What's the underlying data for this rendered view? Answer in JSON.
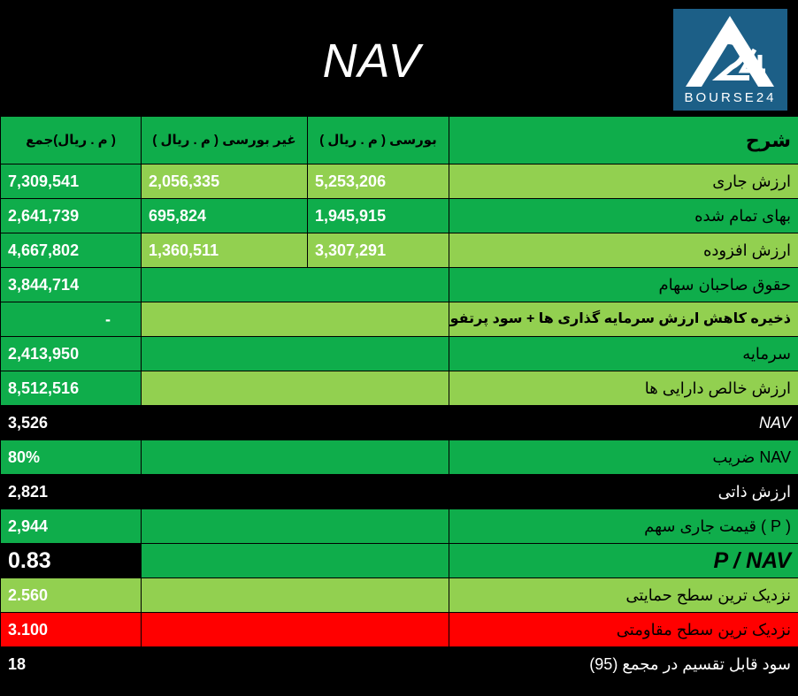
{
  "header": {
    "title": "NAV",
    "logo_text": "BOURSE24"
  },
  "columns": {
    "description": "شرح",
    "bourse": "بورسی ( م . ریال )",
    "non_bourse": "غیر بورسی ( م . ریال )",
    "total": "( م . ریال)جمع"
  },
  "rows": [
    {
      "label": "ارزش جاری",
      "bourse": "5,253,206",
      "non_bourse": "2,056,335",
      "total": "7,309,541"
    },
    {
      "label": "بهای تمام شده",
      "bourse": "1,945,915",
      "non_bourse": "695,824",
      "total": "2,641,739"
    },
    {
      "label": "ارزش افزوده",
      "bourse": "3,307,291",
      "non_bourse": "1,360,511",
      "total": "4,667,802"
    },
    {
      "label": "حقوق صاحبان سهام",
      "total": "3,844,714"
    },
    {
      "label": "ذخیره کاهش ارزش سرمایه گذاری ها + سود پرتفوی",
      "total": "-"
    },
    {
      "label": "سرمایه",
      "total": "2,413,950"
    },
    {
      "label": "ارزش خالص دارایی ها",
      "total": "8,512,516"
    },
    {
      "label": "NAV",
      "total": "3,526"
    },
    {
      "label": "NAV ضریب",
      "total": "80%"
    },
    {
      "label": "ارزش ذاتی",
      "total": "2,821"
    },
    {
      "label": "( P ) قیمت جاری سهم",
      "total": "2,944"
    },
    {
      "label": "P / NAV",
      "total": "0.83"
    },
    {
      "label": "نزدیک ترین سطح حمایتی",
      "total": "2.560"
    },
    {
      "label": "نزدیک ترین سطح مقاومتی",
      "total": "3.100"
    },
    {
      "label": "سود قابل تقسیم در مجمع (95)",
      "total": "18"
    }
  ],
  "colors": {
    "dark_green": "#0fad4b",
    "light_green": "#92d050",
    "red": "#ff0000",
    "logo_blue": "#1c5f87"
  }
}
